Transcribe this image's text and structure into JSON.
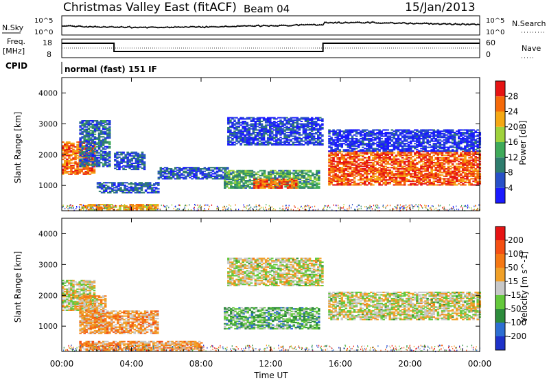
{
  "header": {
    "site": "Christmas Valley East (fitACF)",
    "beam": "Beam 04",
    "date": "15/Jan/2013"
  },
  "mini_panels": {
    "nsky_label": "N.Sky",
    "nsky_ticks": [
      "10^5",
      "10^0"
    ],
    "nsearch_label": "N.Search",
    "nsearch_ticks": [
      "10^5",
      "10^0"
    ],
    "freq_label_1": "Freq.",
    "freq_label_2": "[MHz]",
    "freq_ticks": [
      "18",
      "8"
    ],
    "nave_label": "Nave",
    "nave_ticks": [
      "60",
      "0"
    ],
    "cpid_label": "CPID",
    "cpid_value": "normal (fast) 151 IF"
  },
  "chart_data": [
    {
      "type": "heatmap",
      "name": "power",
      "ylabel": "Slant Range [km]",
      "xlabel": "",
      "y_ticks": [
        "1000",
        "2000",
        "3000",
        "4000"
      ],
      "ylim": [
        180,
        4500
      ],
      "colorbar": {
        "label": "Power [dB]",
        "ticks": [
          "4",
          "8",
          "12",
          "16",
          "20",
          "24",
          "28"
        ],
        "colors": [
          "#1a1aff",
          "#2850c8",
          "#2f7d6e",
          "#3faa5a",
          "#9fd23c",
          "#f5a814",
          "#f56a0a",
          "#e61414"
        ]
      },
      "regions": [
        {
          "t0": 0.0,
          "t1": 1.9,
          "r0": 1350,
          "r1": 2400,
          "level": 0.8
        },
        {
          "t0": 1.0,
          "t1": 2.8,
          "r0": 1600,
          "r1": 3100,
          "level": 0.25
        },
        {
          "t0": 3.0,
          "t1": 4.8,
          "r0": 1500,
          "r1": 2100,
          "level": 0.2
        },
        {
          "t0": 2.0,
          "t1": 5.5,
          "r0": 750,
          "r1": 1100,
          "level": 0.2
        },
        {
          "t0": 1.0,
          "t1": 5.5,
          "r0": 200,
          "r1": 400,
          "level": 0.7
        },
        {
          "t0": 5.5,
          "t1": 9.5,
          "r0": 1200,
          "r1": 1600,
          "level": 0.2
        },
        {
          "t0": 9.5,
          "t1": 15.0,
          "r0": 2300,
          "r1": 3200,
          "level": 0.15
        },
        {
          "t0": 9.3,
          "t1": 14.7,
          "r0": 900,
          "r1": 1500,
          "level": 0.4
        },
        {
          "t0": 11.0,
          "t1": 13.5,
          "r0": 900,
          "r1": 1200,
          "level": 0.85
        },
        {
          "t0": 15.3,
          "t1": 24.0,
          "r0": 1000,
          "r1": 2100,
          "level": 0.85
        },
        {
          "t0": 15.3,
          "t1": 24.0,
          "r0": 2100,
          "r1": 2800,
          "level": 0.1
        }
      ]
    },
    {
      "type": "heatmap",
      "name": "velocity",
      "ylabel": "Slant Range [km]",
      "xlabel": "Time UT",
      "x_ticks": [
        "00:00",
        "04:00",
        "08:00",
        "12:00",
        "16:00",
        "20:00",
        "00:00"
      ],
      "y_ticks": [
        "1000",
        "2000",
        "3000",
        "4000"
      ],
      "ylim": [
        180,
        4500
      ],
      "colorbar": {
        "label": "Velocity [m s^-1]",
        "ticks": [
          "200",
          "100",
          "50",
          "15",
          "-15",
          "-50",
          "-100",
          "-200"
        ],
        "colors": [
          "#1e32c8",
          "#2d6ed2",
          "#2d8c3c",
          "#64c83c",
          "#c8c8c8",
          "#f0a028",
          "#f57814",
          "#f55014",
          "#e61414"
        ]
      },
      "regions": [
        {
          "t0": 0.0,
          "t1": 1.9,
          "r0": 1500,
          "r1": 2500,
          "level": 0.5
        },
        {
          "t0": 1.0,
          "t1": 2.5,
          "r0": 1000,
          "r1": 2000,
          "level": 0.6
        },
        {
          "t0": 1.0,
          "t1": 5.5,
          "r0": 750,
          "r1": 1500,
          "level": 0.65
        },
        {
          "t0": 1.0,
          "t1": 8.0,
          "r0": 200,
          "r1": 500,
          "level": 0.65
        },
        {
          "t0": 9.5,
          "t1": 15.0,
          "r0": 2300,
          "r1": 3200,
          "level": 0.5
        },
        {
          "t0": 9.3,
          "t1": 14.7,
          "r0": 900,
          "r1": 1600,
          "level": 0.35
        },
        {
          "t0": 15.3,
          "t1": 24.0,
          "r0": 1200,
          "r1": 2100,
          "level": 0.5
        }
      ]
    }
  ]
}
